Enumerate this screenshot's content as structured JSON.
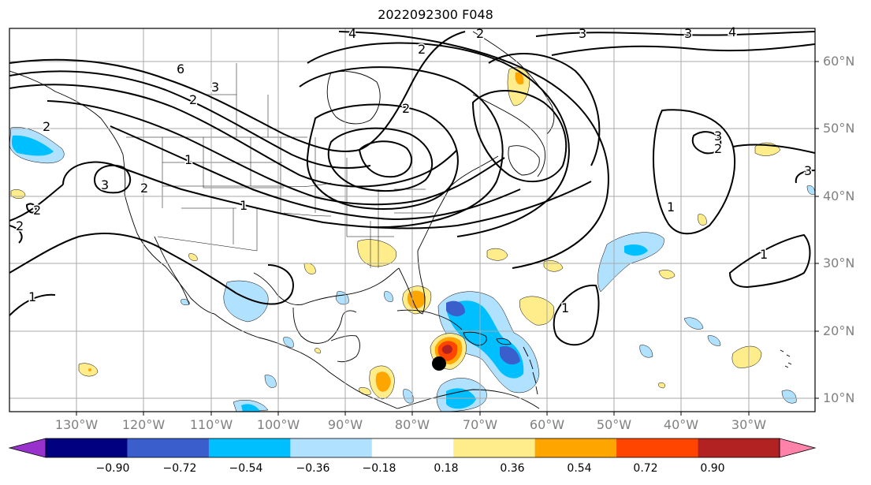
{
  "title": "2022092300 F048",
  "lat_labels": [
    "60°N",
    "50°N",
    "40°N",
    "30°N",
    "20°N",
    "10°N"
  ],
  "lon_labels": [
    "130°W",
    "120°W",
    "110°W",
    "100°W",
    "90°W",
    "80°W",
    "70°W",
    "60°W",
    "50°W",
    "40°W",
    "30°W"
  ],
  "contour_labels": [
    "6",
    "4",
    "3",
    "3",
    "3",
    "2",
    "2",
    "2",
    "2",
    "2",
    "1",
    "1",
    "1",
    "1",
    "1",
    "2",
    "3",
    "2",
    "3",
    "2",
    "1",
    "3",
    "4",
    "2"
  ],
  "colorbar": {
    "ticks": [
      "−0.90",
      "−0.72",
      "−0.54",
      "−0.36",
      "−0.18",
      "0.18",
      "0.36",
      "0.54",
      "0.72",
      "0.90"
    ],
    "colors": [
      "#9932cc",
      "#000080",
      "#3a5fcd",
      "#00bfff",
      "#b0e2ff",
      "#ffffff",
      "#ffec8b",
      "#ffa500",
      "#ff4500",
      "#b22222",
      "#ff82ab"
    ]
  },
  "marker": {
    "label": "storm-center",
    "lon": -76,
    "lat": 15
  }
}
